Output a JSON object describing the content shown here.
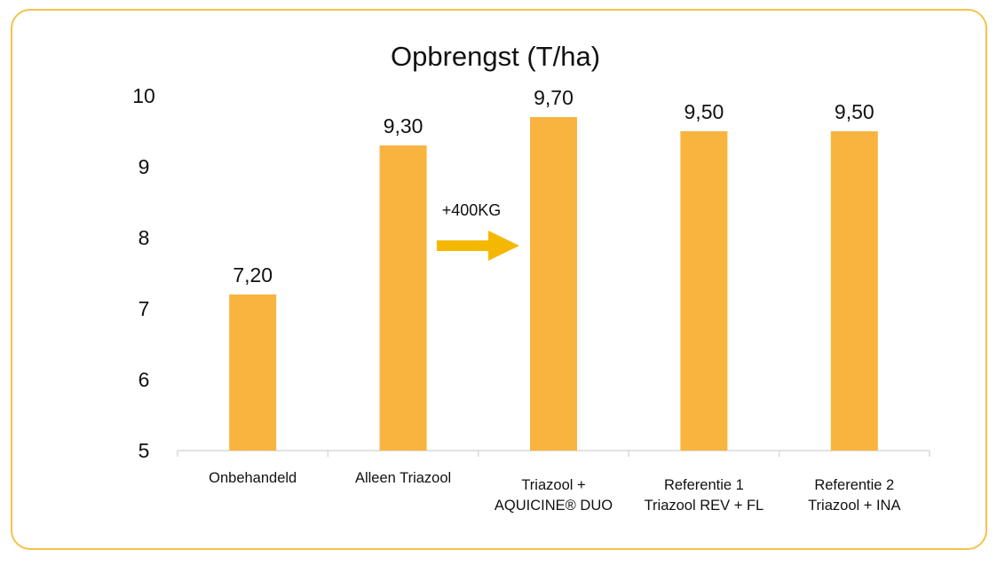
{
  "chart_data": {
    "type": "bar",
    "title": "Opbrengst (T/ha)",
    "xlabel": "",
    "ylabel": "",
    "ylim": [
      5,
      10
    ],
    "yticks": [
      5,
      6,
      7,
      8,
      9,
      10
    ],
    "categories": [
      [
        "Onbehandeld"
      ],
      [
        "Alleen Triazool"
      ],
      [
        "Triazool +",
        "AQUICINE® DUO"
      ],
      [
        "Referentie 1",
        "Triazool REV + FL"
      ],
      [
        "Referentie 2",
        "Triazool +  INA"
      ]
    ],
    "values": [
      7.2,
      9.3,
      9.7,
      9.5,
      9.5
    ],
    "data_labels": [
      "7,20",
      "9,30",
      "9,70",
      "9,50",
      "9,50"
    ],
    "bar_color": "#f8b43f",
    "annotation": {
      "text": "+400KG",
      "arrow_color": "#f5b800",
      "from": "Alleen Triazool",
      "to": "Triazool + AQUICINE® DUO"
    },
    "grid": false
  }
}
